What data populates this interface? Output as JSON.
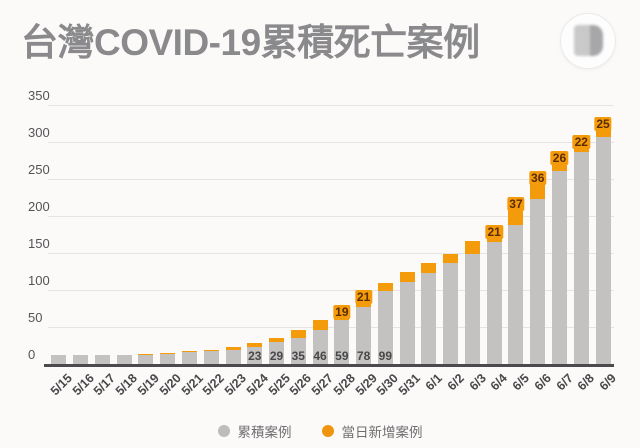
{
  "header": {
    "title": "台灣COVID-19累積死亡案例"
  },
  "watermark": {
    "name": "blurred-circular-logo"
  },
  "colors": {
    "background": "#FCFAF9",
    "bar_gray": "#C3C2C1",
    "bar_orange": "#F49B0C",
    "axis": "#4B4B4E",
    "gridline": "#E6E4E3",
    "title_text": "#8A8A8C",
    "label_dark": "#48484A",
    "chip_text": "#5B2D03",
    "legend_text": "#6E6E70",
    "legend_dot_gray": "#BDBDBE",
    "legend_dot_orange": "#F0940F"
  },
  "chart_data": {
    "type": "bar",
    "stacked": true,
    "title": "台灣COVID-19累積死亡案例",
    "xlabel": "",
    "ylabel": "",
    "ylim": [
      0,
      350
    ],
    "yticks": [
      0,
      50,
      100,
      150,
      200,
      250,
      300,
      350
    ],
    "grid": true,
    "legend_position": "bottom",
    "categories": [
      "5/15",
      "5/16",
      "5/17",
      "5/18",
      "5/19",
      "5/20",
      "5/21",
      "5/22",
      "5/23",
      "5/24",
      "5/25",
      "5/26",
      "5/27",
      "5/28",
      "5/29",
      "5/30",
      "5/31",
      "6/1",
      "6/2",
      "6/3",
      "6/4",
      "6/5",
      "6/6",
      "6/7",
      "6/8",
      "6/9"
    ],
    "series": [
      {
        "name": "累積案例",
        "role": "cumulative_total",
        "color": "#C3C2C1",
        "values": [
          12,
          12,
          12,
          12,
          14,
          15,
          17,
          19,
          23,
          29,
          35,
          46,
          59,
          78,
          99,
          110,
          124,
          137,
          149,
          166,
          187,
          224,
          260,
          286,
          308,
          333
        ]
      },
      {
        "name": "當日新增案例",
        "role": "daily_new",
        "color": "#F49B0C",
        "values": [
          0,
          0,
          0,
          0,
          2,
          1,
          2,
          2,
          4,
          6,
          6,
          11,
          13,
          19,
          21,
          11,
          14,
          13,
          12,
          17,
          21,
          37,
          36,
          26,
          22,
          25
        ]
      }
    ],
    "bar_top_labels": [
      "",
      "",
      "",
      "",
      "",
      "",
      "",
      "",
      "",
      "",
      "",
      "",
      "",
      "19",
      "21",
      "",
      "",
      "",
      "",
      "",
      "21",
      "37",
      "36",
      "26",
      "22",
      "25"
    ],
    "bar_base_labels": [
      "",
      "",
      "",
      "",
      "",
      "",
      "",
      "",
      "",
      "23",
      "29",
      "35",
      "46",
      "59",
      "78",
      "99",
      "",
      "",
      "",
      "",
      "",
      "",
      "",
      "",
      "",
      ""
    ]
  },
  "legend": {
    "items": [
      {
        "label": "累積案例",
        "color": "#BDBDBE"
      },
      {
        "label": "當日新增案例",
        "color": "#F0940F"
      }
    ]
  }
}
